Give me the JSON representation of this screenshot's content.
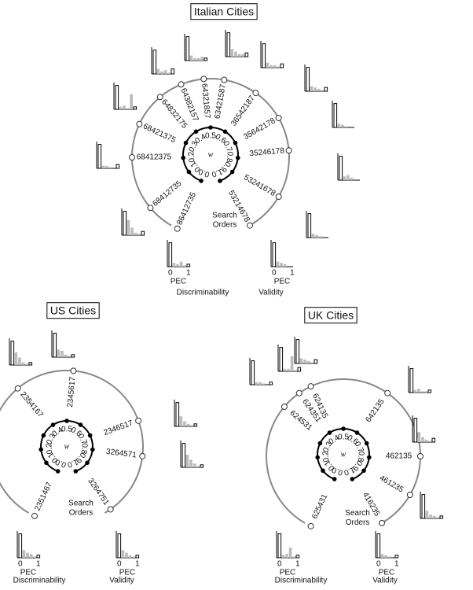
{
  "panels": [
    {
      "title": "Italian Cities",
      "w_symbol": "w",
      "w_labels": [
        "0.0",
        "0.1",
        "0.2",
        "0.3",
        "0.4",
        "0.5",
        "0.6",
        "0.7",
        "0.8",
        "0.9",
        "1.0"
      ],
      "center_label": [
        "Search",
        "Orders"
      ],
      "axis_label": "PEC",
      "axis_ticks": [
        0,
        1
      ],
      "end_labels": [
        "Discriminability",
        "Validity"
      ],
      "orders": [
        {
          "label": "86412735",
          "hist": [
            0.95,
            0.15,
            0.1,
            0.2,
            0.05,
            0.1
          ]
        },
        {
          "label": "68412735",
          "hist": [
            0.95,
            0.6,
            0.3,
            0.1,
            0.05,
            0.15
          ]
        },
        {
          "label": "68412375",
          "hist": [
            0.95,
            0.1,
            0.1,
            0.05,
            0.0,
            0.15
          ]
        },
        {
          "label": "68421375",
          "hist": [
            0.95,
            0.1,
            0.15,
            0.05,
            0.6,
            0.1
          ]
        },
        {
          "label": "64832175",
          "hist": [
            0.95,
            0.2,
            0.1,
            0.15,
            0.05,
            0.2
          ]
        },
        {
          "label": "64382157",
          "hist": [
            0.95,
            0.2,
            0.1,
            0.1,
            0.15,
            0.1
          ]
        },
        {
          "label": "64321857",
          "hist": [
            0.95,
            0.3,
            0.2,
            0.1,
            0.1,
            0.15
          ]
        },
        {
          "label": "63421587",
          "hist": [
            0.95,
            0.2,
            0.1,
            0.1,
            0.05,
            0.15
          ]
        },
        {
          "label": "36542187",
          "hist": [
            0.95,
            0.2,
            0.15,
            0.1,
            0.05,
            0.15
          ]
        },
        {
          "label": "35642178",
          "hist": [
            0.95,
            0.15,
            0.1,
            0.05,
            0.0,
            0.0
          ]
        },
        {
          "label": "35246178",
          "hist": [
            0.95,
            0.15,
            0.2,
            0.1,
            0.0,
            0.0
          ]
        },
        {
          "label": "53241678",
          "hist": [
            0.95,
            0.15,
            0.1,
            0.05,
            0.0,
            0.0
          ]
        },
        {
          "label": "53214678",
          "hist": [
            0.95,
            0.2,
            0.15,
            0.1,
            0.0,
            0.0
          ]
        }
      ]
    },
    {
      "title": "US Cities",
      "w_symbol": "w",
      "w_labels": [
        "0.0",
        "0.1",
        "0.2",
        "0.3",
        "0.4",
        "0.5",
        "0.6",
        "0.7",
        "0.8",
        "0.9",
        "1.0"
      ],
      "center_label": [
        "Search",
        "Orders"
      ],
      "axis_label": "PEC",
      "axis_ticks": [
        0,
        1
      ],
      "end_labels": [
        "Discriminability",
        "Validity"
      ],
      "orders": [
        {
          "label": "2351467",
          "hist": [
            0.95,
            0.3,
            0.2,
            0.15,
            0.05,
            0.1
          ]
        },
        {
          "label": "2354167",
          "hist": [
            0.95,
            0.5,
            0.3,
            0.1,
            0.05,
            0.1
          ]
        },
        {
          "label": "2345617",
          "hist": [
            0.95,
            0.3,
            0.25,
            0.1,
            0.05,
            0.1
          ]
        },
        {
          "label": "2346517",
          "hist": [
            0.95,
            0.4,
            0.2,
            0.1,
            0.05,
            0.1
          ]
        },
        {
          "label": "3264571",
          "hist": [
            0.95,
            0.5,
            0.3,
            0.15,
            0.05,
            0.1
          ]
        },
        {
          "label": "3264751",
          "hist": [
            0.95,
            0.3,
            0.2,
            0.1,
            0.05,
            0.1
          ]
        }
      ]
    },
    {
      "title": "UK Cities",
      "w_symbol": "w",
      "w_labels": [
        "0.0",
        "0.1",
        "0.2",
        "0.3",
        "0.4",
        "0.5",
        "0.6",
        "0.7",
        "0.8",
        "0.9",
        "1.0"
      ],
      "center_label": [
        "Search",
        "Orders"
      ],
      "axis_label": "PEC",
      "axis_ticks": [
        0,
        1
      ],
      "end_labels": [
        "Discriminability",
        "Validity"
      ],
      "orders": [
        {
          "label": "625431",
          "hist": [
            0.95,
            0.1,
            0.15,
            0.4,
            0.05,
            0.1
          ]
        },
        {
          "label": "624531",
          "hist": [
            0.95,
            0.1,
            0.1,
            0.05,
            0.0,
            0.1
          ]
        },
        {
          "label": "624351",
          "hist": [
            0.95,
            0.1,
            0.1,
            0.6,
            0.05,
            0.15
          ]
        },
        {
          "label": "624135",
          "hist": [
            0.95,
            0.2,
            0.15,
            0.1,
            0.05,
            0.15
          ]
        },
        {
          "label": "642135",
          "hist": [
            0.95,
            0.1,
            0.15,
            0.05,
            0.05,
            0.1
          ]
        },
        {
          "label": "462135",
          "hist": [
            0.95,
            0.4,
            0.2,
            0.1,
            0.05,
            0.15
          ]
        },
        {
          "label": "461235",
          "hist": [
            0.95,
            0.3,
            0.15,
            0.1,
            0.05,
            0.1
          ]
        },
        {
          "label": "416235",
          "hist": [
            0.95,
            0.15,
            0.1,
            0.05,
            0.0,
            0.1
          ]
        }
      ]
    }
  ]
}
